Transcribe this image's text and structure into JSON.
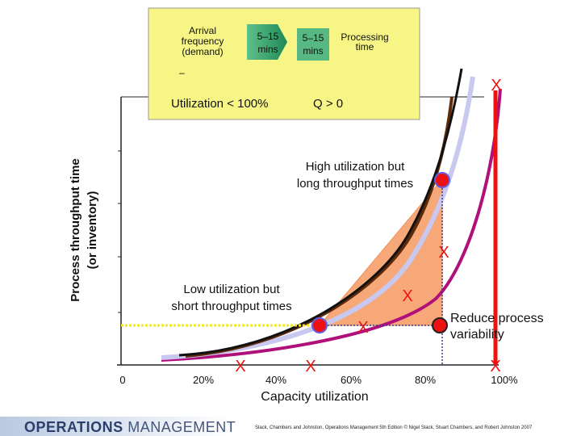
{
  "legend": {
    "arrival_label": "Arrival frequency (demand)",
    "arrival_lines": [
      "Arrival",
      "frequency",
      "(demand)"
    ],
    "arrival_mins": [
      "5–15",
      "mins"
    ],
    "processing_mins": [
      "5–15",
      "mins"
    ],
    "processing_label": [
      "Processing",
      "time"
    ],
    "dash": "–",
    "utilization_text": "Utilization < 100%",
    "queue_text": "Q > 0"
  },
  "axes": {
    "ylabel_lines": [
      "Process throughput time",
      "(or inventory)"
    ],
    "xlabel": "Capacity utilization",
    "xticks": [
      "0",
      "20%",
      "40%",
      "60%",
      "80%",
      "100%"
    ]
  },
  "annotations": {
    "high_util": [
      "High utilization but",
      "long throughput times"
    ],
    "low_util": [
      "Low utilization but",
      "short throughput times"
    ],
    "reduce_var": [
      "Reduce process",
      "variability"
    ],
    "x_mark": "X"
  },
  "footer": {
    "brand_bold": "OPERATIONS",
    "brand_thin": "MANAGEMENT",
    "credit": "Slack, Chambers and Johnston, Operations Management 5th Edition © Nigel Slack, Stuart Chambers, and Robert Johnston 2007"
  },
  "colors": {
    "curve_black": "#111111",
    "curve_brown": "#5c2a08",
    "curve_lavender": "#c8c8f0",
    "curve_magenta": "#b0107a",
    "fill_orange": "#f7a878",
    "axis_red": "#ee1111",
    "legend_bg": "#f6f586"
  }
}
